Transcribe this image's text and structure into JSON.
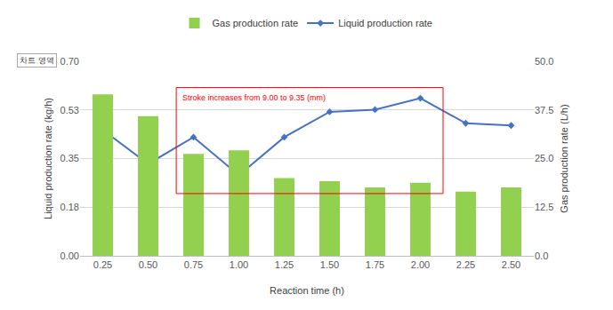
{
  "chart_data": {
    "type": "bar",
    "x_label": "Reaction time (h)",
    "y_label": "Liquid production rate (kg/h)",
    "y2_label": "Gas production rate (L/h)",
    "categories": [
      "0.25",
      "0.50",
      "0.75",
      "1.00",
      "1.25",
      "1.50",
      "1.75",
      "2.00",
      "2.25",
      "2.50"
    ],
    "series": [
      {
        "name": "Gas production rate",
        "type": "bar",
        "axis": "y2",
        "color": "#92d050",
        "values": [
          41.5,
          35.9,
          26.2,
          27.1,
          20.0,
          19.2,
          17.6,
          18.8,
          16.5,
          17.6
        ]
      },
      {
        "name": "Liquid production rate",
        "type": "line",
        "color": "#4472c4",
        "marker": "diamond",
        "values": [
          0.453,
          0.331,
          0.427,
          0.29,
          0.427,
          0.518,
          0.526,
          0.567,
          0.477,
          0.469
        ]
      }
    ],
    "ylim": [
      0,
      0.7
    ],
    "yticks": [
      {
        "value": 0,
        "label": "0.00"
      },
      {
        "value": 0.175,
        "label": "0.18"
      },
      0.35,
      {
        "value": 0.525,
        "label": "0.53"
      },
      {
        "value": 0.7,
        "label": "0.70"
      }
    ],
    "y2lim": [
      0,
      50
    ],
    "y2ticks": [
      {
        "value": 0,
        "label": "0.0"
      },
      12.5,
      {
        "value": 25,
        "label": "25.0"
      },
      37.5,
      {
        "value": 50,
        "label": "50.0"
      }
    ],
    "annotations": [
      "Stroke increases from 9.00 to 9.35 (mm)",
      "차트 영역"
    ],
    "grid": true,
    "legend": "top"
  }
}
